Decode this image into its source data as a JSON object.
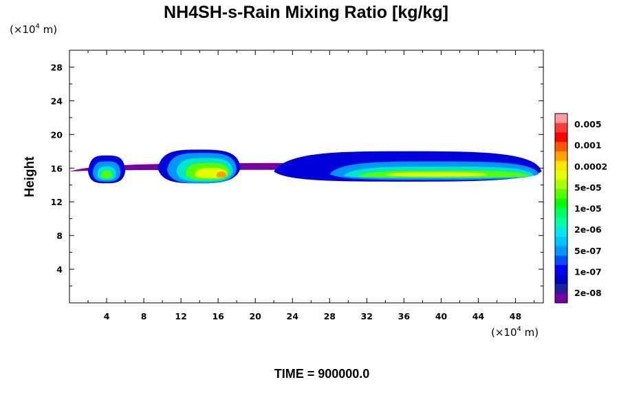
{
  "chart_data": {
    "type": "contour",
    "title": "NH4SH-s-Rain Mixing Ratio [kg/kg]",
    "ylabel": "Height",
    "xunit": {
      "prefix": "(×10",
      "exp": "4",
      "suffix": " m)"
    },
    "yunit": {
      "prefix": "(×10",
      "exp": "4",
      "suffix": " m)"
    },
    "xlim": [
      0,
      51
    ],
    "ylim": [
      0,
      30
    ],
    "xticks": [
      "4",
      "8",
      "12",
      "16",
      "20",
      "24",
      "28",
      "32",
      "36",
      "40",
      "44",
      "48"
    ],
    "yticks": [
      "4",
      "8",
      "12",
      "16",
      "20",
      "24",
      "28"
    ],
    "colorbar": {
      "levels": [
        "0.005",
        "0.001",
        "0.0002",
        "5e-05",
        "1e-05",
        "2e-06",
        "5e-07",
        "1e-07",
        "2e-08"
      ],
      "colors": [
        "#ff9c9c",
        "#ff3c3c",
        "#ff0000",
        "#ff5a00",
        "#ffa000",
        "#ffe600",
        "#e1ff00",
        "#aaff00",
        "#55ff00",
        "#00ff00",
        "#00ff64",
        "#00ffa0",
        "#00e6e6",
        "#00c8ff",
        "#0096ff",
        "#0050ff",
        "#0000ff",
        "#0000c8",
        "#1e1e96",
        "#7800aa"
      ]
    },
    "cloud_layers": [
      {
        "level": "2e-08",
        "color": "#7800aa",
        "blobs": [
          [
            0.0,
            50.9,
            15.6,
            15.8,
            16.6
          ]
        ]
      },
      {
        "level": "1e-07",
        "color": "#0000dc",
        "blobs": [
          [
            2.0,
            6.0,
            15.6,
            14.2,
            17.5
          ],
          [
            9.5,
            18.4,
            16.0,
            14.2,
            18.2
          ],
          [
            22.0,
            50.8,
            15.6,
            14.4,
            18.0
          ]
        ]
      },
      {
        "level": "5e-07",
        "color": "#0096ff",
        "blobs": [
          [
            2.5,
            5.5,
            15.4,
            14.4,
            16.8
          ],
          [
            10.5,
            18.0,
            15.8,
            14.2,
            17.8
          ],
          [
            28.0,
            50.5,
            15.3,
            14.6,
            16.8
          ]
        ]
      },
      {
        "level": "2e-06",
        "color": "#00e6c8",
        "blobs": [
          [
            3.0,
            5.0,
            15.2,
            14.6,
            16.2
          ],
          [
            11.5,
            17.6,
            15.6,
            14.4,
            17.2
          ],
          [
            29.5,
            50.0,
            15.1,
            14.8,
            16.2
          ]
        ]
      },
      {
        "level": "1e-05",
        "color": "#55ff00",
        "blobs": [
          [
            3.4,
            4.6,
            15.0,
            14.8,
            15.7
          ],
          [
            12.5,
            17.2,
            15.4,
            14.6,
            16.6
          ],
          [
            31.0,
            49.5,
            15.0,
            14.9,
            15.7
          ]
        ]
      },
      {
        "level": "5e-05",
        "color": "#e1ff00",
        "blobs": [
          [
            13.5,
            17.0,
            15.2,
            14.8,
            16.0
          ],
          [
            34.0,
            45.0,
            15.2,
            15.0,
            15.5
          ]
        ]
      },
      {
        "level": "0.0002",
        "color": "#ffa000",
        "blobs": [
          [
            15.8,
            16.9,
            15.0,
            14.9,
            15.6
          ]
        ]
      }
    ],
    "annotation": "TIME = 900000.0"
  }
}
